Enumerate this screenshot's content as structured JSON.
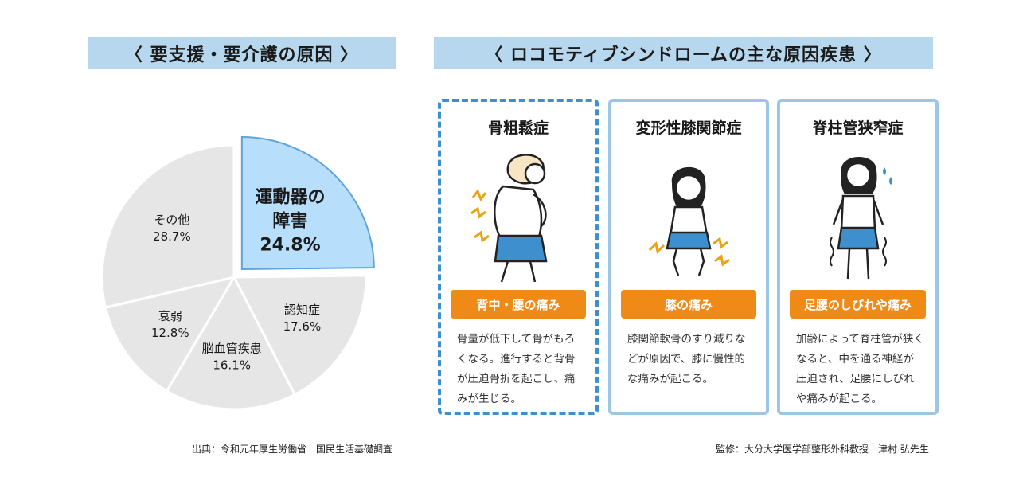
{
  "left_panel": {
    "title": "〈 要支援・要介護の原因 〉",
    "source": "出典：令和元年厚生労働省　国民生活基礎調査"
  },
  "right_panel": {
    "title": "〈 ロコモティブシンドロームの主な原因疾患 〉",
    "source": "監修：大分大学医学部整形外科教授　津村 弘先生",
    "cards": [
      {
        "title": "骨粗鬆症",
        "tag": "背中・腰の痛み",
        "description": "骨量が低下して骨がもろくなる。進行すると背骨が圧迫骨折を起こし、痛みが生じる。"
      },
      {
        "title": "変形性膝関節症",
        "tag": "膝の痛み",
        "description": "膝関節軟骨のすり減りなどが原因で、膝に慢性的な痛みが起こる。"
      },
      {
        "title": "脊柱管狭窄症",
        "tag": "足腰のしびれや痛み",
        "description": "加齢によって脊柱管が狭くなると、中を通る神経が圧迫され、足腰にしびれや痛みが起こる。"
      }
    ]
  },
  "colors": {
    "banner": "#b7d7ee",
    "highlight_slice": "#b7defb",
    "highlight_stroke": "#5fa4d8",
    "other_slice": "#e6e6e6",
    "tag": "#ef8a17"
  },
  "chart_data": {
    "type": "pie",
    "title": "",
    "unit": "%",
    "start": "12 o'clock, clockwise; highlighted slice exploded",
    "slices": [
      {
        "label": "運動器の障害",
        "value": 24.8,
        "value_label": "24.8%",
        "highlight": true
      },
      {
        "label": "認知症",
        "value": 17.6,
        "value_label": "17.6%",
        "highlight": false
      },
      {
        "label": "脳血管疾患",
        "value": 16.1,
        "value_label": "16.1%",
        "highlight": false
      },
      {
        "label": "衰弱",
        "value": 12.8,
        "value_label": "12.8%",
        "highlight": false
      },
      {
        "label": "その他",
        "value": 28.7,
        "value_label": "28.7%",
        "highlight": false
      }
    ]
  }
}
